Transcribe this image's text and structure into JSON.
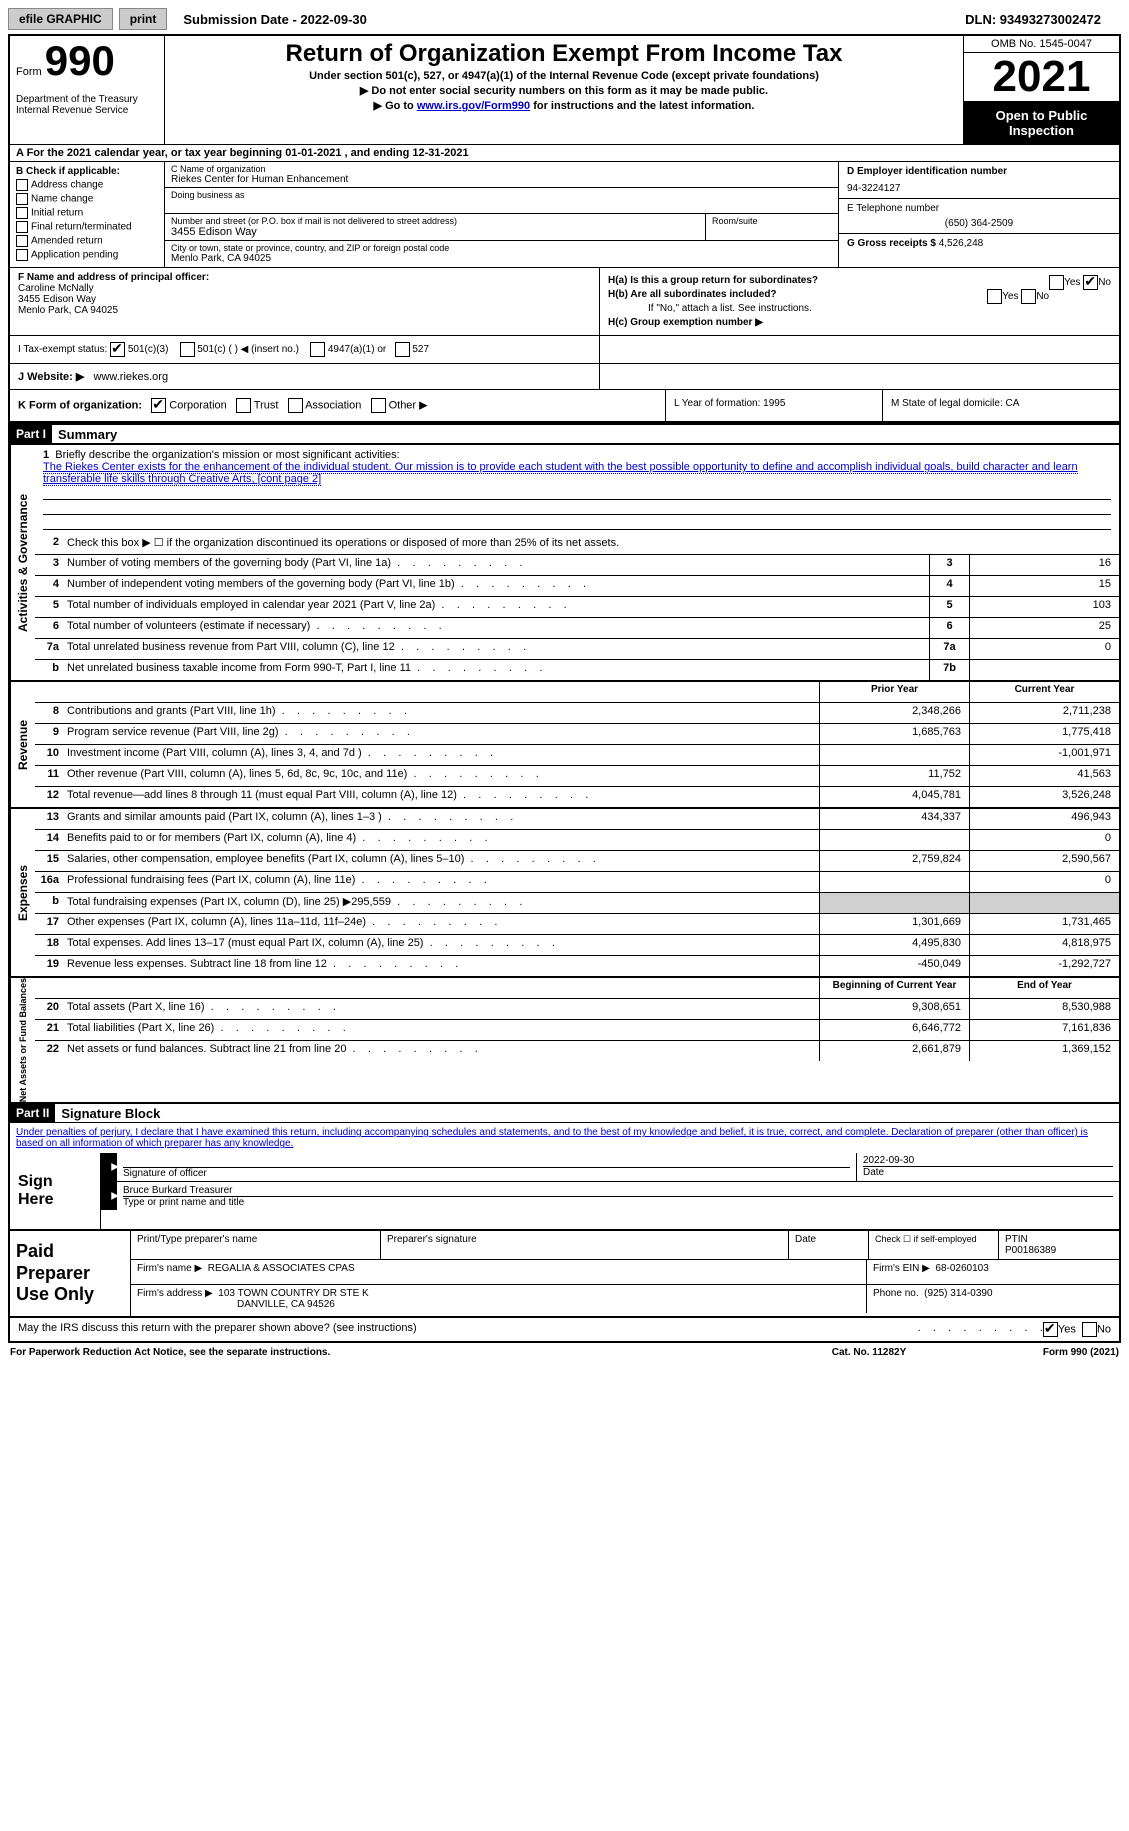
{
  "topbar": {
    "efile": "efile GRAPHIC",
    "print": "print",
    "submission": "Submission Date - 2022-09-30",
    "dln": "DLN: 93493273002472"
  },
  "header": {
    "form_label": "Form",
    "form_number": "990",
    "dept": "Department of the Treasury\nInternal Revenue Service",
    "title": "Return of Organization Exempt From Income Tax",
    "sub1": "Under section 501(c), 527, or 4947(a)(1) of the Internal Revenue Code (except private foundations)",
    "sub2": "▶ Do not enter social security numbers on this form as it may be made public.",
    "sub3_pre": "▶ Go to ",
    "sub3_link": "www.irs.gov/Form990",
    "sub3_post": " for instructions and the latest information.",
    "omb": "OMB No. 1545-0047",
    "year": "2021",
    "open": "Open to Public Inspection"
  },
  "row_a": "A For the 2021 calendar year, or tax year beginning 01-01-2021    , and ending 12-31-2021",
  "section_b": {
    "b_label": "B Check if applicable:",
    "checks": [
      "Address change",
      "Name change",
      "Initial return",
      "Final return/terminated",
      "Amended return",
      "Application pending"
    ],
    "c_label": "C Name of organization",
    "org_name": "Riekes Center for Human Enhancement",
    "dba_label": "Doing business as",
    "addr_label": "Number and street (or P.O. box if mail is not delivered to street address)",
    "room_label": "Room/suite",
    "addr": "3455 Edison Way",
    "city_label": "City or town, state or province, country, and ZIP or foreign postal code",
    "city": "Menlo Park, CA  94025",
    "d_label": "D Employer identification number",
    "ein": "94-3224127",
    "e_label": "E Telephone number",
    "phone": "(650) 364-2509",
    "g_label": "G Gross receipts $",
    "gross": "4,526,248"
  },
  "section_f": {
    "f_label": "F Name and address of principal officer:",
    "officer_name": "Caroline McNally",
    "officer_addr1": "3455 Edison Way",
    "officer_addr2": "Menlo Park, CA  94025",
    "ha": "H(a)  Is this a group return for subordinates?",
    "hb": "H(b)  Are all subordinates included?",
    "hb_note": "If \"No,\" attach a list. See instructions.",
    "hc": "H(c)  Group exemption number ▶"
  },
  "tax_status": {
    "label": "I   Tax-exempt status:",
    "opt1": "501(c)(3)",
    "opt2": "501(c) (   ) ◀ (insert no.)",
    "opt3": "4947(a)(1) or",
    "opt4": "527"
  },
  "website": {
    "label": "J   Website: ▶",
    "value": "www.riekes.org"
  },
  "k_row": {
    "label": "K Form of organization:",
    "opts": [
      "Corporation",
      "Trust",
      "Association",
      "Other ▶"
    ],
    "l": "L Year of formation: 1995",
    "m": "M State of legal domicile: CA"
  },
  "parts": {
    "p1": "Part I",
    "p1_title": "Summary",
    "p2": "Part II",
    "p2_title": "Signature Block"
  },
  "mission": {
    "num": "1",
    "label": "Briefly describe the organization's mission or most significant activities:",
    "text": "The Riekes Center exists for the enhancement of the individual student. Our mission is to provide each student with the best possible opportunity to define and accomplish individual goals, build character and learn transferable life skills through Creative Arts, [cont page 2]"
  },
  "line2": {
    "num": "2",
    "text": "Check this box ▶ ☐  if the organization discontinued its operations or disposed of more than 25% of its net assets."
  },
  "summary_rows": [
    {
      "num": "3",
      "desc": "Number of voting members of the governing body (Part VI, line 1a)",
      "box": "3",
      "val": "16"
    },
    {
      "num": "4",
      "desc": "Number of independent voting members of the governing body (Part VI, line 1b)",
      "box": "4",
      "val": "15"
    },
    {
      "num": "5",
      "desc": "Total number of individuals employed in calendar year 2021 (Part V, line 2a)",
      "box": "5",
      "val": "103"
    },
    {
      "num": "6",
      "desc": "Total number of volunteers (estimate if necessary)",
      "box": "6",
      "val": "25"
    },
    {
      "num": "7a",
      "desc": "Total unrelated business revenue from Part VIII, column (C), line 12",
      "box": "7a",
      "val": "0"
    },
    {
      "num": "b",
      "desc": "Net unrelated business taxable income from Form 990-T, Part I, line 11",
      "box": "7b",
      "val": ""
    }
  ],
  "two_col_header": {
    "prior": "Prior Year",
    "current": "Current Year"
  },
  "revenue_rows": [
    {
      "num": "8",
      "desc": "Contributions and grants (Part VIII, line 1h)",
      "prior": "2,348,266",
      "current": "2,711,238"
    },
    {
      "num": "9",
      "desc": "Program service revenue (Part VIII, line 2g)",
      "prior": "1,685,763",
      "current": "1,775,418"
    },
    {
      "num": "10",
      "desc": "Investment income (Part VIII, column (A), lines 3, 4, and 7d )",
      "prior": "",
      "current": "-1,001,971"
    },
    {
      "num": "11",
      "desc": "Other revenue (Part VIII, column (A), lines 5, 6d, 8c, 9c, 10c, and 11e)",
      "prior": "11,752",
      "current": "41,563"
    },
    {
      "num": "12",
      "desc": "Total revenue—add lines 8 through 11 (must equal Part VIII, column (A), line 12)",
      "prior": "4,045,781",
      "current": "3,526,248"
    }
  ],
  "expense_rows": [
    {
      "num": "13",
      "desc": "Grants and similar amounts paid (Part IX, column (A), lines 1–3 )",
      "prior": "434,337",
      "current": "496,943"
    },
    {
      "num": "14",
      "desc": "Benefits paid to or for members (Part IX, column (A), line 4)",
      "prior": "",
      "current": "0"
    },
    {
      "num": "15",
      "desc": "Salaries, other compensation, employee benefits (Part IX, column (A), lines 5–10)",
      "prior": "2,759,824",
      "current": "2,590,567"
    },
    {
      "num": "16a",
      "desc": "Professional fundraising fees (Part IX, column (A), line 11e)",
      "prior": "",
      "current": "0"
    },
    {
      "num": "b",
      "desc": "Total fundraising expenses (Part IX, column (D), line 25) ▶295,559",
      "prior": "grey",
      "current": "grey"
    },
    {
      "num": "17",
      "desc": "Other expenses (Part IX, column (A), lines 11a–11d, 11f–24e)",
      "prior": "1,301,669",
      "current": "1,731,465"
    },
    {
      "num": "18",
      "desc": "Total expenses. Add lines 13–17 (must equal Part IX, column (A), line 25)",
      "prior": "4,495,830",
      "current": "4,818,975"
    },
    {
      "num": "19",
      "desc": "Revenue less expenses. Subtract line 18 from line 12",
      "prior": "-450,049",
      "current": "-1,292,727"
    }
  ],
  "net_header": {
    "begin": "Beginning of Current Year",
    "end": "End of Year"
  },
  "net_rows": [
    {
      "num": "20",
      "desc": "Total assets (Part X, line 16)",
      "prior": "9,308,651",
      "current": "8,530,988"
    },
    {
      "num": "21",
      "desc": "Total liabilities (Part X, line 26)",
      "prior": "6,646,772",
      "current": "7,161,836"
    },
    {
      "num": "22",
      "desc": "Net assets or fund balances. Subtract line 21 from line 20",
      "prior": "2,661,879",
      "current": "1,369,152"
    }
  ],
  "sig_declaration": "Under penalties of perjury, I declare that I have examined this return, including accompanying schedules and statements, and to the best of my knowledge and belief, it is true, correct, and complete. Declaration of preparer (other than officer) is based on all information of which preparer has any knowledge.",
  "sign": {
    "label": "Sign Here",
    "sig_of_officer": "Signature of officer",
    "date_label": "Date",
    "date": "2022-09-30",
    "name": "Bruce Burkard Treasurer",
    "name_label": "Type or print name and title"
  },
  "paid": {
    "label": "Paid Preparer Use Only",
    "h1": "Print/Type preparer's name",
    "h2": "Preparer's signature",
    "h3": "Date",
    "h4_pre": "Check ☐ if self-employed",
    "h5": "PTIN",
    "ptin": "P00186389",
    "firm_name_label": "Firm's name    ▶",
    "firm_name": "REGALIA & ASSOCIATES CPAS",
    "firm_ein_label": "Firm's EIN ▶",
    "firm_ein": "68-0260103",
    "firm_addr_label": "Firm's address ▶",
    "firm_addr1": "103 TOWN COUNTRY DR STE K",
    "firm_addr2": "DANVILLE, CA  94526",
    "phone_label": "Phone no.",
    "phone": "(925) 314-0390"
  },
  "discuss": "May the IRS discuss this return with the preparer shown above? (see instructions)",
  "footer": {
    "left": "For Paperwork Reduction Act Notice, see the separate instructions.",
    "mid": "Cat. No. 11282Y",
    "right": "Form 990 (2021)"
  },
  "vert_labels": {
    "ag": "Activities & Governance",
    "rev": "Revenue",
    "exp": "Expenses",
    "net": "Net Assets or Fund Balances"
  }
}
